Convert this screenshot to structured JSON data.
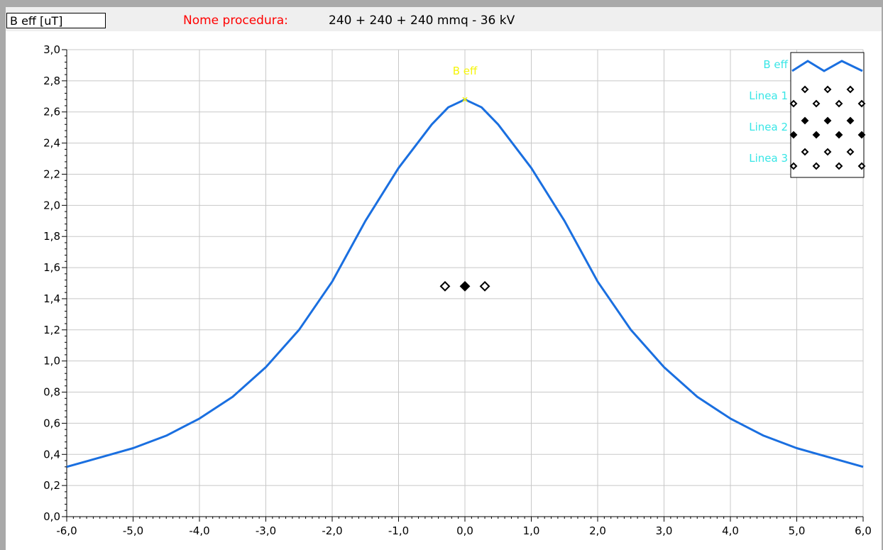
{
  "header": {
    "unit_label": "B eff [uT]",
    "procedure_label": "Nome procedura:",
    "procedure_name": "240 + 240 + 240 mmq - 36 kV"
  },
  "colors": {
    "curve": "#1a6fe0",
    "peak_label": "#f5f50a",
    "legend_text": "#39e6e6",
    "grid": "#c8c8c8"
  },
  "chart_data": {
    "type": "line",
    "xlim": [
      -6,
      6
    ],
    "ylim": [
      0,
      3
    ],
    "grid": true,
    "legend_position": "top-right",
    "x_ticks": [
      "-6,0",
      "-5,0",
      "-4,0",
      "-3,0",
      "-2,0",
      "-1,0",
      "0,0",
      "1,0",
      "2,0",
      "3,0",
      "4,0",
      "5,0",
      "6,0"
    ],
    "y_ticks": [
      "0,0",
      "0,2",
      "0,4",
      "0,6",
      "0,8",
      "1,0",
      "1,2",
      "1,4",
      "1,6",
      "1,8",
      "2,0",
      "2,2",
      "2,4",
      "2,6",
      "2,8",
      "3,0"
    ],
    "peak_label": "B eff",
    "series": [
      {
        "name": "B eff",
        "style": "line",
        "x": [
          -6,
          -5.5,
          -5,
          -4.5,
          -4,
          -3.5,
          -3,
          -2.5,
          -2,
          -1.5,
          -1,
          -0.5,
          -0.25,
          0,
          0.25,
          0.5,
          1,
          1.5,
          2,
          2.5,
          3,
          3.5,
          4,
          4.5,
          5,
          5.5,
          6
        ],
        "y": [
          0.32,
          0.38,
          0.44,
          0.52,
          0.63,
          0.77,
          0.96,
          1.2,
          1.51,
          1.9,
          2.24,
          2.52,
          2.63,
          2.68,
          2.63,
          2.52,
          2.24,
          1.9,
          1.51,
          1.2,
          0.96,
          0.77,
          0.63,
          0.52,
          0.44,
          0.38,
          0.32
        ]
      },
      {
        "name": "Linea 1",
        "style": "open-diamond",
        "x": [
          -0.3
        ],
        "y": [
          1.48
        ]
      },
      {
        "name": "Linea 2",
        "style": "filled-diamond",
        "x": [
          0.0
        ],
        "y": [
          1.48
        ]
      },
      {
        "name": "Linea 3",
        "style": "open-diamond",
        "x": [
          0.3
        ],
        "y": [
          1.48
        ]
      }
    ]
  }
}
